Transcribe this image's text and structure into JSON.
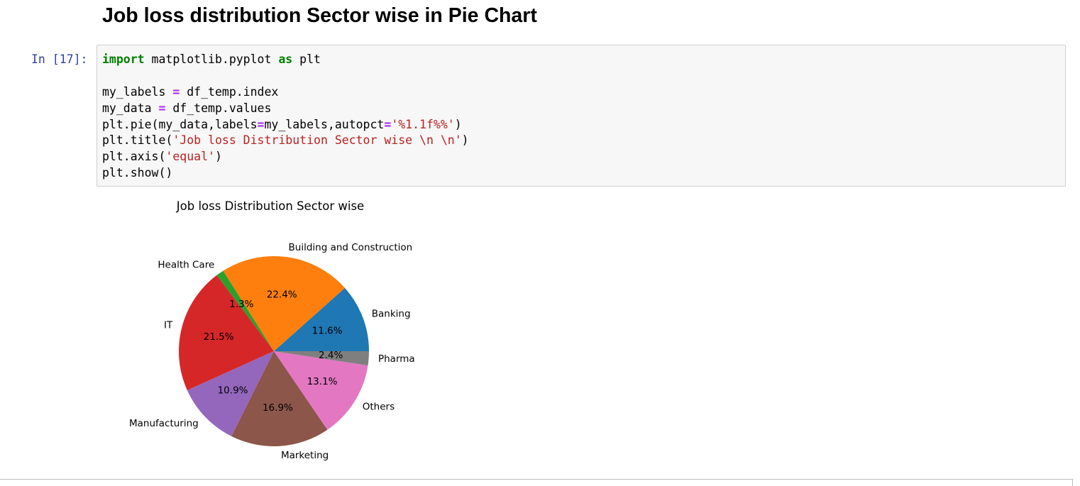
{
  "heading": "Job loss distribution Sector wise in Pie Chart",
  "cell": {
    "prompt": "In [17]:",
    "code_lines": [
      [
        {
          "t": "import",
          "c": "kw"
        },
        {
          "t": " matplotlib.pyplot ",
          "c": ""
        },
        {
          "t": "as",
          "c": "kw"
        },
        {
          "t": " plt",
          "c": ""
        }
      ],
      [
        {
          "t": "",
          "c": ""
        }
      ],
      [
        {
          "t": "my_labels ",
          "c": ""
        },
        {
          "t": "=",
          "c": "op"
        },
        {
          "t": " df_temp.index",
          "c": ""
        }
      ],
      [
        {
          "t": "my_data ",
          "c": ""
        },
        {
          "t": "=",
          "c": "op"
        },
        {
          "t": " df_temp.values",
          "c": ""
        }
      ],
      [
        {
          "t": "plt.pie(my_data,labels",
          "c": ""
        },
        {
          "t": "=",
          "c": "op"
        },
        {
          "t": "my_labels,autopct",
          "c": ""
        },
        {
          "t": "=",
          "c": "op"
        },
        {
          "t": "'%1.1f%%'",
          "c": "st"
        },
        {
          "t": ")",
          "c": ""
        }
      ],
      [
        {
          "t": "plt.title(",
          "c": ""
        },
        {
          "t": "'Job loss Distribution Sector wise \\n \\n'",
          "c": "st"
        },
        {
          "t": ")",
          "c": ""
        }
      ],
      [
        {
          "t": "plt.axis(",
          "c": ""
        },
        {
          "t": "'equal'",
          "c": "st"
        },
        {
          "t": ")",
          "c": ""
        }
      ],
      [
        {
          "t": "plt.show()",
          "c": ""
        }
      ]
    ]
  },
  "chart_data": {
    "type": "pie",
    "title": "Job loss Distribution Sector wise",
    "start_angle_deg": 0,
    "direction": "counterclockwise",
    "slices": [
      {
        "label": "Banking",
        "value": 11.6,
        "pct_label": "11.6%",
        "color": "#1f77b4"
      },
      {
        "label": "Building and Construction",
        "value": 22.4,
        "pct_label": "22.4%",
        "color": "#ff7f0e"
      },
      {
        "label": "Health Care",
        "value": 1.3,
        "pct_label": "1.3%",
        "color": "#2ca02c"
      },
      {
        "label": "IT",
        "value": 21.5,
        "pct_label": "21.5%",
        "color": "#d62728"
      },
      {
        "label": "Manufacturing",
        "value": 10.9,
        "pct_label": "10.9%",
        "color": "#9467bd"
      },
      {
        "label": "Marketing",
        "value": 16.9,
        "pct_label": "16.9%",
        "color": "#8c564b"
      },
      {
        "label": "Others",
        "value": 13.1,
        "pct_label": "13.1%",
        "color": "#e377c2"
      },
      {
        "label": "Pharma",
        "value": 2.4,
        "pct_label": "2.4%",
        "color": "#7f7f7f"
      }
    ]
  }
}
